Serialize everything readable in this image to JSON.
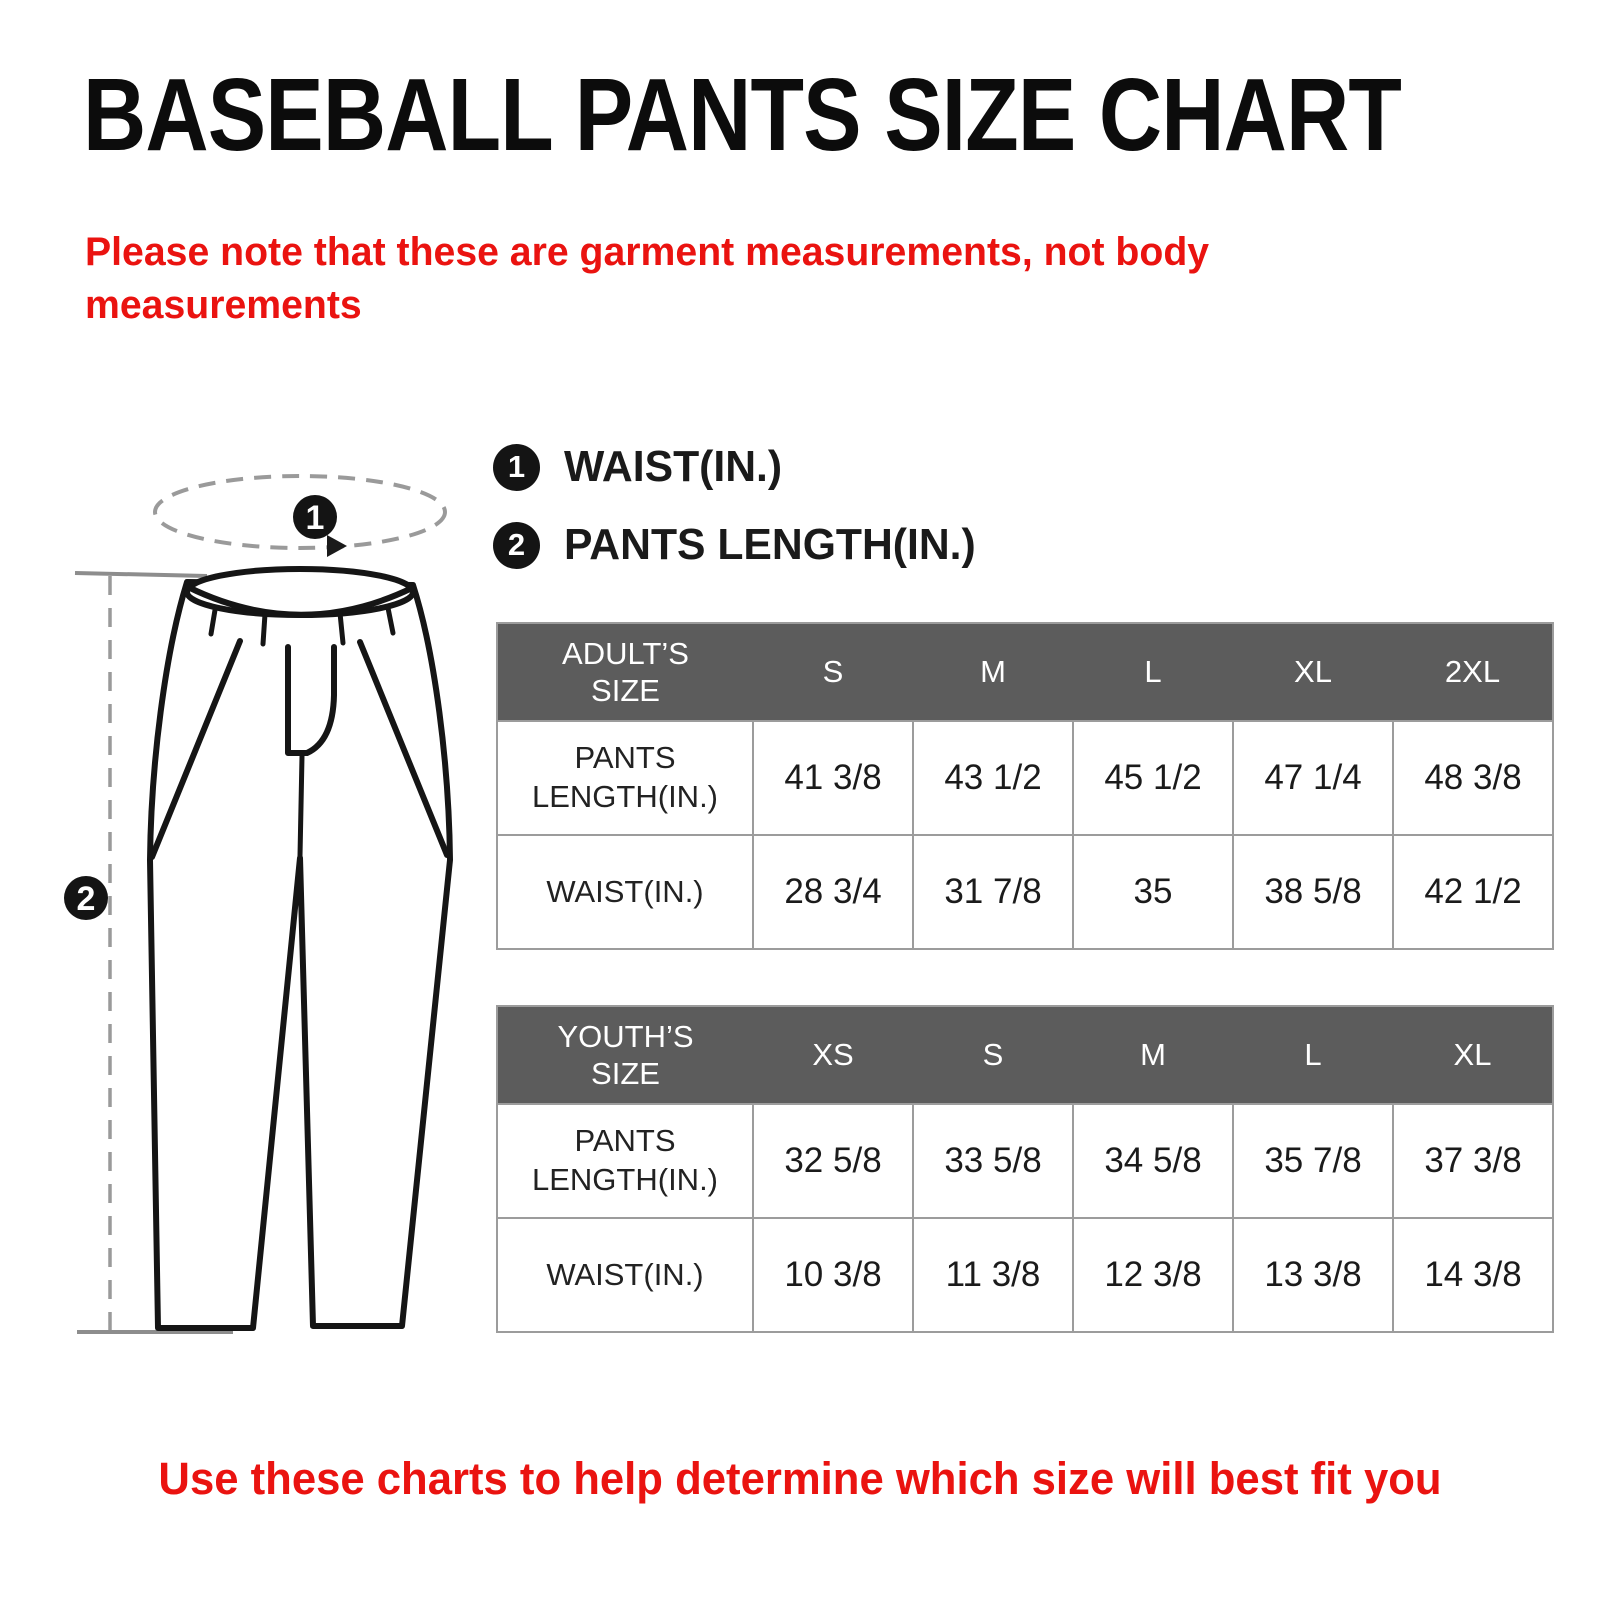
{
  "title": "BASEBALL PANTS SIZE CHART",
  "note": "Please note that these are garment measurements, not body measurements",
  "footer": "Use these charts to help determine which size will best fit you",
  "colors": {
    "accent_red": "#ea1310",
    "table_header_gray": "#5c5c5c",
    "table_border_gray": "#9c9c9c",
    "ink_black": "#141414",
    "guide_gray": "#9a9a9a"
  },
  "legend": {
    "items": [
      {
        "num": "1",
        "label": "WAIST(IN.)"
      },
      {
        "num": "2",
        "label": "PANTS LENGTH(IN.)"
      }
    ]
  },
  "diagram": {
    "marker_waist": "1",
    "marker_length": "2"
  },
  "chart_data": [
    {
      "type": "table",
      "title": "ADULT'S SIZE",
      "corner_label": "ADULT’S\nSIZE",
      "columns": [
        "S",
        "M",
        "L",
        "XL",
        "2XL"
      ],
      "rows": [
        {
          "label": "PANTS\nLENGTH(IN.)",
          "values": [
            "41 3/8",
            "43 1/2",
            "45 1/2",
            "47 1/4",
            "48 3/8"
          ]
        },
        {
          "label": "WAIST(IN.)",
          "values": [
            "28 3/4",
            "31 7/8",
            "35",
            "38 5/8",
            "42 1/2"
          ]
        }
      ]
    },
    {
      "type": "table",
      "title": "YOUTH'S SIZE",
      "corner_label": "YOUTH’S\nSIZE",
      "columns": [
        "XS",
        "S",
        "M",
        "L",
        "XL"
      ],
      "rows": [
        {
          "label": "PANTS\nLENGTH(IN.)",
          "values": [
            "32 5/8",
            "33 5/8",
            "34 5/8",
            "35 7/8",
            "37 3/8"
          ]
        },
        {
          "label": "WAIST(IN.)",
          "values": [
            "10 3/8",
            "11 3/8",
            "12 3/8",
            "13 3/8",
            "14 3/8"
          ]
        }
      ]
    }
  ]
}
